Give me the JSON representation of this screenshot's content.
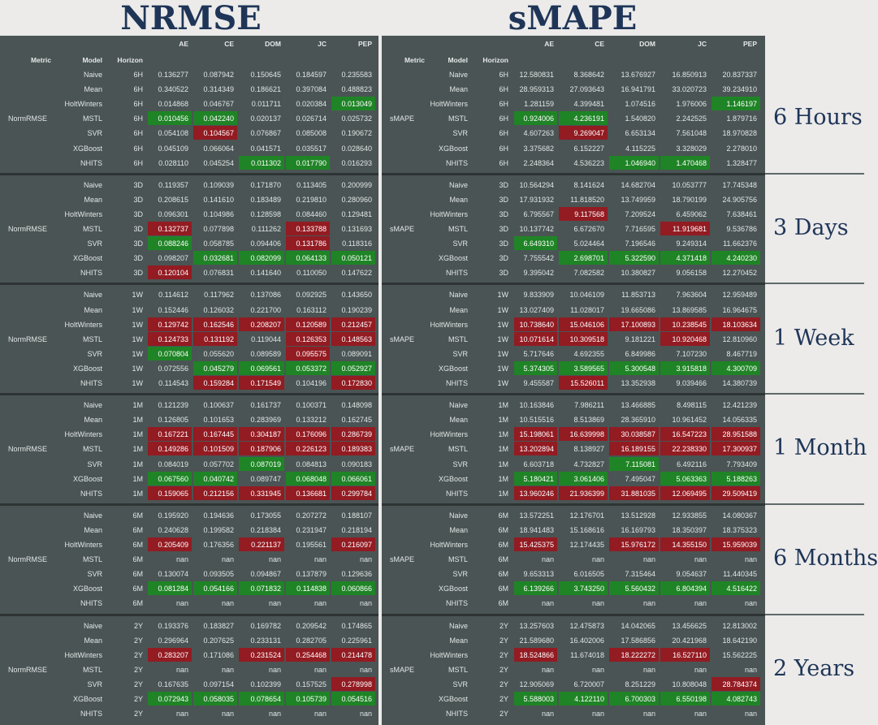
{
  "titles": {
    "left": "NRMSE",
    "right": "sMAPE"
  },
  "header": {
    "columns": [
      "AE",
      "CE",
      "DOM",
      "JC",
      "PEP"
    ],
    "index_labels": [
      "Metric",
      "Model",
      "Horizon"
    ]
  },
  "metric_labels": {
    "left": "NormRMSE",
    "right": "sMAPE"
  },
  "models": [
    "Naive",
    "Mean",
    "HoltWinters",
    "MSTL",
    "SVR",
    "XGBoost",
    "NHITS"
  ],
  "section_labels": [
    "6 Hours",
    "3 Days",
    "1 Week",
    "1 Month",
    "6 Months",
    "2 Years"
  ],
  "sections": [
    {
      "horizon": "6H",
      "nrmse": [
        [
          "0.136277",
          "0.087942",
          "0.150645",
          "0.184597",
          "0.235583"
        ],
        [
          "0.340522",
          "0.314349",
          "0.186621",
          "0.397084",
          "0.488823"
        ],
        [
          "0.014868",
          "0.046767",
          "0.011711",
          "0.020384",
          "0.013049"
        ],
        [
          "0.010456",
          "0.042240",
          "0.020137",
          "0.026714",
          "0.025732"
        ],
        [
          "0.054108",
          "0.104567",
          "0.076867",
          "0.085008",
          "0.190672"
        ],
        [
          "0.045109",
          "0.066064",
          "0.041571",
          "0.035517",
          "0.028640"
        ],
        [
          "0.028110",
          "0.045254",
          "0.011302",
          "0.017790",
          "0.016293"
        ]
      ],
      "nrmse_hl": [
        [
          "",
          "",
          "",
          "",
          ""
        ],
        [
          "",
          "",
          "",
          "",
          ""
        ],
        [
          "",
          "",
          "",
          "",
          "g"
        ],
        [
          "g",
          "g",
          "",
          "",
          ""
        ],
        [
          "",
          "r",
          "",
          "",
          ""
        ],
        [
          "",
          "",
          "",
          "",
          ""
        ],
        [
          "",
          "",
          "g",
          "g",
          ""
        ]
      ],
      "smape": [
        [
          "12.580831",
          "8.368642",
          "13.676927",
          "16.850913",
          "20.837337"
        ],
        [
          "28.959313",
          "27.093643",
          "16.941791",
          "33.020723",
          "39.234910"
        ],
        [
          "1.281159",
          "4.399481",
          "1.074516",
          "1.976006",
          "1.146197"
        ],
        [
          "0.924006",
          "4.236191",
          "1.540820",
          "2.242525",
          "1.879716"
        ],
        [
          "4.607263",
          "9.269047",
          "6.653134",
          "7.561048",
          "18.970828"
        ],
        [
          "3.375682",
          "6.152227",
          "4.115225",
          "3.328029",
          "2.278010"
        ],
        [
          "2.248364",
          "4.536223",
          "1.046940",
          "1.470468",
          "1.328477"
        ]
      ],
      "smape_hl": [
        [
          "",
          "",
          "",
          "",
          ""
        ],
        [
          "",
          "",
          "",
          "",
          ""
        ],
        [
          "",
          "",
          "",
          "",
          "g"
        ],
        [
          "g",
          "g",
          "",
          "",
          ""
        ],
        [
          "",
          "r",
          "",
          "",
          ""
        ],
        [
          "",
          "",
          "",
          "",
          ""
        ],
        [
          "",
          "",
          "g",
          "g",
          ""
        ]
      ]
    },
    {
      "horizon": "3D",
      "nrmse": [
        [
          "0.119357",
          "0.109039",
          "0.171870",
          "0.113405",
          "0.200999"
        ],
        [
          "0.208615",
          "0.141610",
          "0.183489",
          "0.219810",
          "0.280960"
        ],
        [
          "0.096301",
          "0.104986",
          "0.128598",
          "0.084460",
          "0.129481"
        ],
        [
          "0.132737",
          "0.077898",
          "0.111262",
          "0.133788",
          "0.131693"
        ],
        [
          "0.088246",
          "0.058785",
          "0.094406",
          "0.131786",
          "0.118316"
        ],
        [
          "0.098207",
          "0.032681",
          "0.082099",
          "0.064133",
          "0.050121"
        ],
        [
          "0.120104",
          "0.076831",
          "0.141640",
          "0.110050",
          "0.147622"
        ]
      ],
      "nrmse_hl": [
        [
          "",
          "",
          "",
          "",
          ""
        ],
        [
          "",
          "",
          "",
          "",
          ""
        ],
        [
          "",
          "",
          "",
          "",
          ""
        ],
        [
          "r",
          "",
          "",
          "r",
          ""
        ],
        [
          "g",
          "",
          "",
          "r",
          ""
        ],
        [
          "",
          "g",
          "g",
          "g",
          "g"
        ],
        [
          "r",
          "",
          "",
          "",
          ""
        ]
      ],
      "smape": [
        [
          "10.564294",
          "8.141624",
          "14.682704",
          "10.053777",
          "17.745348"
        ],
        [
          "17.931932",
          "11.818520",
          "13.749959",
          "18.790199",
          "24.905756"
        ],
        [
          "6.795567",
          "9.117568",
          "7.209524",
          "6.459062",
          "7.638461"
        ],
        [
          "10.137742",
          "6.672670",
          "7.716595",
          "11.919681",
          "9.536786"
        ],
        [
          "6.649310",
          "5.024464",
          "7.196546",
          "9.249314",
          "11.662376"
        ],
        [
          "7.755542",
          "2.698701",
          "5.322590",
          "4.371418",
          "4.240230"
        ],
        [
          "9.395042",
          "7.082582",
          "10.380827",
          "9.056158",
          "12.270452"
        ]
      ],
      "smape_hl": [
        [
          "",
          "",
          "",
          "",
          ""
        ],
        [
          "",
          "",
          "",
          "",
          ""
        ],
        [
          "",
          "r",
          "",
          "",
          ""
        ],
        [
          "",
          "",
          "",
          "r",
          ""
        ],
        [
          "g",
          "",
          "",
          "",
          ""
        ],
        [
          "",
          "g",
          "g",
          "g",
          "g"
        ],
        [
          "",
          "",
          "",
          "",
          ""
        ]
      ]
    },
    {
      "horizon": "1W",
      "nrmse": [
        [
          "0.114612",
          "0.117962",
          "0.137086",
          "0.092925",
          "0.143650"
        ],
        [
          "0.152446",
          "0.126032",
          "0.221700",
          "0.163112",
          "0.190239"
        ],
        [
          "0.129742",
          "0.162546",
          "0.208207",
          "0.120589",
          "0.212457"
        ],
        [
          "0.124733",
          "0.131192",
          "0.119044",
          "0.126353",
          "0.148563"
        ],
        [
          "0.070804",
          "0.055620",
          "0.089589",
          "0.095575",
          "0.089091"
        ],
        [
          "0.072556",
          "0.045279",
          "0.069561",
          "0.053372",
          "0.052927"
        ],
        [
          "0.114543",
          "0.159284",
          "0.171549",
          "0.104196",
          "0.172830"
        ]
      ],
      "nrmse_hl": [
        [
          "",
          "",
          "",
          "",
          ""
        ],
        [
          "",
          "",
          "",
          "",
          ""
        ],
        [
          "r",
          "r",
          "r",
          "r",
          "r"
        ],
        [
          "r",
          "r",
          "",
          "r",
          "r"
        ],
        [
          "g",
          "",
          "",
          "r",
          ""
        ],
        [
          "",
          "g",
          "g",
          "g",
          "g"
        ],
        [
          "",
          "r",
          "r",
          "",
          "r"
        ]
      ],
      "smape": [
        [
          "9.833909",
          "10.046109",
          "11.853713",
          "7.963604",
          "12.959489"
        ],
        [
          "13.027409",
          "11.028017",
          "19.665086",
          "13.869585",
          "16.964675"
        ],
        [
          "10.738640",
          "15.046106",
          "17.100893",
          "10.238545",
          "18.103634"
        ],
        [
          "10.071614",
          "10.309518",
          "9.181221",
          "10.920468",
          "12.810960"
        ],
        [
          "5.717646",
          "4.692355",
          "6.849986",
          "7.107230",
          "8.467719"
        ],
        [
          "5.374305",
          "3.589565",
          "5.300548",
          "3.915818",
          "4.300709"
        ],
        [
          "9.455587",
          "15.526011",
          "13.352938",
          "9.039466",
          "14.380739"
        ]
      ],
      "smape_hl": [
        [
          "",
          "",
          "",
          "",
          ""
        ],
        [
          "",
          "",
          "",
          "",
          ""
        ],
        [
          "r",
          "r",
          "r",
          "r",
          "r"
        ],
        [
          "r",
          "r",
          "",
          "r",
          ""
        ],
        [
          "",
          "",
          "",
          "",
          ""
        ],
        [
          "g",
          "g",
          "g",
          "g",
          "g"
        ],
        [
          "",
          "r",
          "",
          "",
          ""
        ]
      ]
    },
    {
      "horizon": "1M",
      "nrmse": [
        [
          "0.121239",
          "0.100637",
          "0.161737",
          "0.100371",
          "0.148098"
        ],
        [
          "0.126805",
          "0.101653",
          "0.283969",
          "0.133212",
          "0.162745"
        ],
        [
          "0.167221",
          "0.167445",
          "0.304187",
          "0.176096",
          "0.286739"
        ],
        [
          "0.149286",
          "0.101509",
          "0.187906",
          "0.226123",
          "0.189383"
        ],
        [
          "0.084019",
          "0.057702",
          "0.087019",
          "0.084813",
          "0.090183"
        ],
        [
          "0.067560",
          "0.040742",
          "0.089747",
          "0.068048",
          "0.066061"
        ],
        [
          "0.159065",
          "0.212156",
          "0.331945",
          "0.136681",
          "0.299784"
        ]
      ],
      "nrmse_hl": [
        [
          "",
          "",
          "",
          "",
          ""
        ],
        [
          "",
          "",
          "",
          "",
          ""
        ],
        [
          "r",
          "r",
          "r",
          "r",
          "r"
        ],
        [
          "r",
          "r",
          "r",
          "r",
          "r"
        ],
        [
          "",
          "",
          "g",
          "",
          ""
        ],
        [
          "g",
          "g",
          "",
          "g",
          "g"
        ],
        [
          "r",
          "r",
          "r",
          "r",
          "r"
        ]
      ],
      "smape": [
        [
          "10.163846",
          "7.986211",
          "13.466885",
          "8.498115",
          "12.421239"
        ],
        [
          "10.515516",
          "8.513869",
          "28.365910",
          "10.961452",
          "14.056335"
        ],
        [
          "15.198061",
          "16.639998",
          "30.038587",
          "16.547223",
          "28.951588"
        ],
        [
          "13.202894",
          "8.138927",
          "16.189155",
          "22.238330",
          "17.300937"
        ],
        [
          "6.603718",
          "4.732827",
          "7.115081",
          "6.492116",
          "7.793409"
        ],
        [
          "5.180421",
          "3.061406",
          "7.495047",
          "5.063363",
          "5.188263"
        ],
        [
          "13.960246",
          "21.936399",
          "31.881035",
          "12.069495",
          "29.509419"
        ]
      ],
      "smape_hl": [
        [
          "",
          "",
          "",
          "",
          ""
        ],
        [
          "",
          "",
          "",
          "",
          ""
        ],
        [
          "r",
          "r",
          "r",
          "r",
          "r"
        ],
        [
          "r",
          "",
          "r",
          "r",
          "r"
        ],
        [
          "",
          "",
          "g",
          "",
          ""
        ],
        [
          "g",
          "g",
          "",
          "g",
          "g"
        ],
        [
          "r",
          "r",
          "r",
          "r",
          "r"
        ]
      ]
    },
    {
      "horizon": "6M",
      "nrmse": [
        [
          "0.195920",
          "0.194636",
          "0.173055",
          "0.207272",
          "0.188107"
        ],
        [
          "0.240628",
          "0.199582",
          "0.218384",
          "0.231947",
          "0.218194"
        ],
        [
          "0.205409",
          "0.176356",
          "0.221137",
          "0.195561",
          "0.216097"
        ],
        [
          "nan",
          "nan",
          "nan",
          "nan",
          "nan"
        ],
        [
          "0.130074",
          "0.093505",
          "0.094867",
          "0.137879",
          "0.129636"
        ],
        [
          "0.081284",
          "0.054166",
          "0.071832",
          "0.114838",
          "0.060866"
        ],
        [
          "nan",
          "nan",
          "nan",
          "nan",
          "nan"
        ]
      ],
      "nrmse_hl": [
        [
          "",
          "",
          "",
          "",
          ""
        ],
        [
          "",
          "",
          "",
          "",
          ""
        ],
        [
          "r",
          "",
          "r",
          "",
          "r"
        ],
        [
          "",
          "",
          "",
          "",
          ""
        ],
        [
          "",
          "",
          "",
          "",
          ""
        ],
        [
          "g",
          "g",
          "g",
          "g",
          "g"
        ],
        [
          "",
          "",
          "",
          "",
          ""
        ]
      ],
      "smape": [
        [
          "13.572251",
          "12.176701",
          "13.512928",
          "12.933855",
          "14.080367"
        ],
        [
          "18.941483",
          "15.168616",
          "16.169793",
          "18.350397",
          "18.375323"
        ],
        [
          "15.425375",
          "12.174435",
          "15.976172",
          "14.355150",
          "15.959039"
        ],
        [
          "nan",
          "nan",
          "nan",
          "nan",
          "nan"
        ],
        [
          "9.653313",
          "6.016505",
          "7.315464",
          "9.054637",
          "11.440345"
        ],
        [
          "6.139266",
          "3.743250",
          "5.560432",
          "6.804394",
          "4.516422"
        ],
        [
          "nan",
          "nan",
          "nan",
          "nan",
          "nan"
        ]
      ],
      "smape_hl": [
        [
          "",
          "",
          "",
          "",
          ""
        ],
        [
          "",
          "",
          "",
          "",
          ""
        ],
        [
          "r",
          "",
          "r",
          "r",
          "r"
        ],
        [
          "",
          "",
          "",
          "",
          ""
        ],
        [
          "",
          "",
          "",
          "",
          ""
        ],
        [
          "g",
          "g",
          "g",
          "g",
          "g"
        ],
        [
          "",
          "",
          "",
          "",
          ""
        ]
      ]
    },
    {
      "horizon": "2Y",
      "nrmse": [
        [
          "0.193376",
          "0.183827",
          "0.169782",
          "0.209542",
          "0.174865"
        ],
        [
          "0.296964",
          "0.207625",
          "0.233131",
          "0.282705",
          "0.225961"
        ],
        [
          "0.283207",
          "0.171086",
          "0.231524",
          "0.254468",
          "0.214478"
        ],
        [
          "nan",
          "nan",
          "nan",
          "nan",
          "nan"
        ],
        [
          "0.167635",
          "0.097154",
          "0.102399",
          "0.157525",
          "0.278998"
        ],
        [
          "0.072943",
          "0.058035",
          "0.078654",
          "0.105739",
          "0.054516"
        ],
        [
          "nan",
          "nan",
          "nan",
          "nan",
          "nan"
        ]
      ],
      "nrmse_hl": [
        [
          "",
          "",
          "",
          "",
          ""
        ],
        [
          "",
          "",
          "",
          "",
          ""
        ],
        [
          "r",
          "",
          "r",
          "r",
          "r"
        ],
        [
          "",
          "",
          "",
          "",
          ""
        ],
        [
          "",
          "",
          "",
          "",
          "r"
        ],
        [
          "g",
          "g",
          "g",
          "g",
          "g"
        ],
        [
          "",
          "",
          "",
          "",
          ""
        ]
      ],
      "smape": [
        [
          "13.257603",
          "12.475873",
          "14.042065",
          "13.456625",
          "12.813002"
        ],
        [
          "21.589680",
          "16.402006",
          "17.586856",
          "20.421968",
          "18.642190"
        ],
        [
          "18.524866",
          "11.674018",
          "18.222272",
          "16.527110",
          "15.562225"
        ],
        [
          "nan",
          "nan",
          "nan",
          "nan",
          "nan"
        ],
        [
          "12.905069",
          "6.720007",
          "8.251229",
          "10.808048",
          "28.784374"
        ],
        [
          "5.588003",
          "4.122110",
          "6.700303",
          "6.550198",
          "4.082743"
        ],
        [
          "nan",
          "nan",
          "nan",
          "nan",
          "nan"
        ]
      ],
      "smape_hl": [
        [
          "",
          "",
          "",
          "",
          ""
        ],
        [
          "",
          "",
          "",
          "",
          ""
        ],
        [
          "r",
          "",
          "r",
          "r",
          ""
        ],
        [
          "",
          "",
          "",
          "",
          ""
        ],
        [
          "",
          "",
          "",
          "",
          "r"
        ],
        [
          "g",
          "g",
          "g",
          "g",
          "g"
        ],
        [
          "",
          "",
          "",
          "",
          ""
        ]
      ]
    }
  ]
}
